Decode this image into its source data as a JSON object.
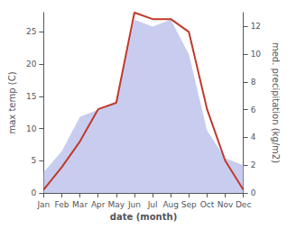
{
  "chart_data": {
    "type": "line",
    "xlabel": "date (month)",
    "ylabel": "max temp (C)",
    "y2label": "med. precipitation (kg/m2)",
    "categories": [
      "Jan",
      "Feb",
      "Mar",
      "Apr",
      "May",
      "Jun",
      "Jul",
      "Aug",
      "Sep",
      "Oct",
      "Nov",
      "Dec"
    ],
    "series": [
      {
        "type": "area",
        "axis": "y2",
        "color": "#b0b8e8",
        "values": [
          1.5,
          3.0,
          5.5,
          6.0,
          6.5,
          12.5,
          12.0,
          12.5,
          10.0,
          4.5,
          2.5,
          2.0
        ]
      },
      {
        "type": "line",
        "color": "#c0392b",
        "values": [
          0.5,
          4,
          8,
          13,
          14,
          28,
          27,
          27,
          25,
          13,
          5,
          0.5
        ]
      }
    ],
    "ylim": [
      0,
      28
    ],
    "yticks": [
      0,
      5,
      10,
      15,
      20,
      25
    ],
    "y2lim": [
      0,
      13
    ],
    "y2ticks": [
      0,
      2,
      4,
      6,
      8,
      10,
      12
    ],
    "grid": false
  }
}
